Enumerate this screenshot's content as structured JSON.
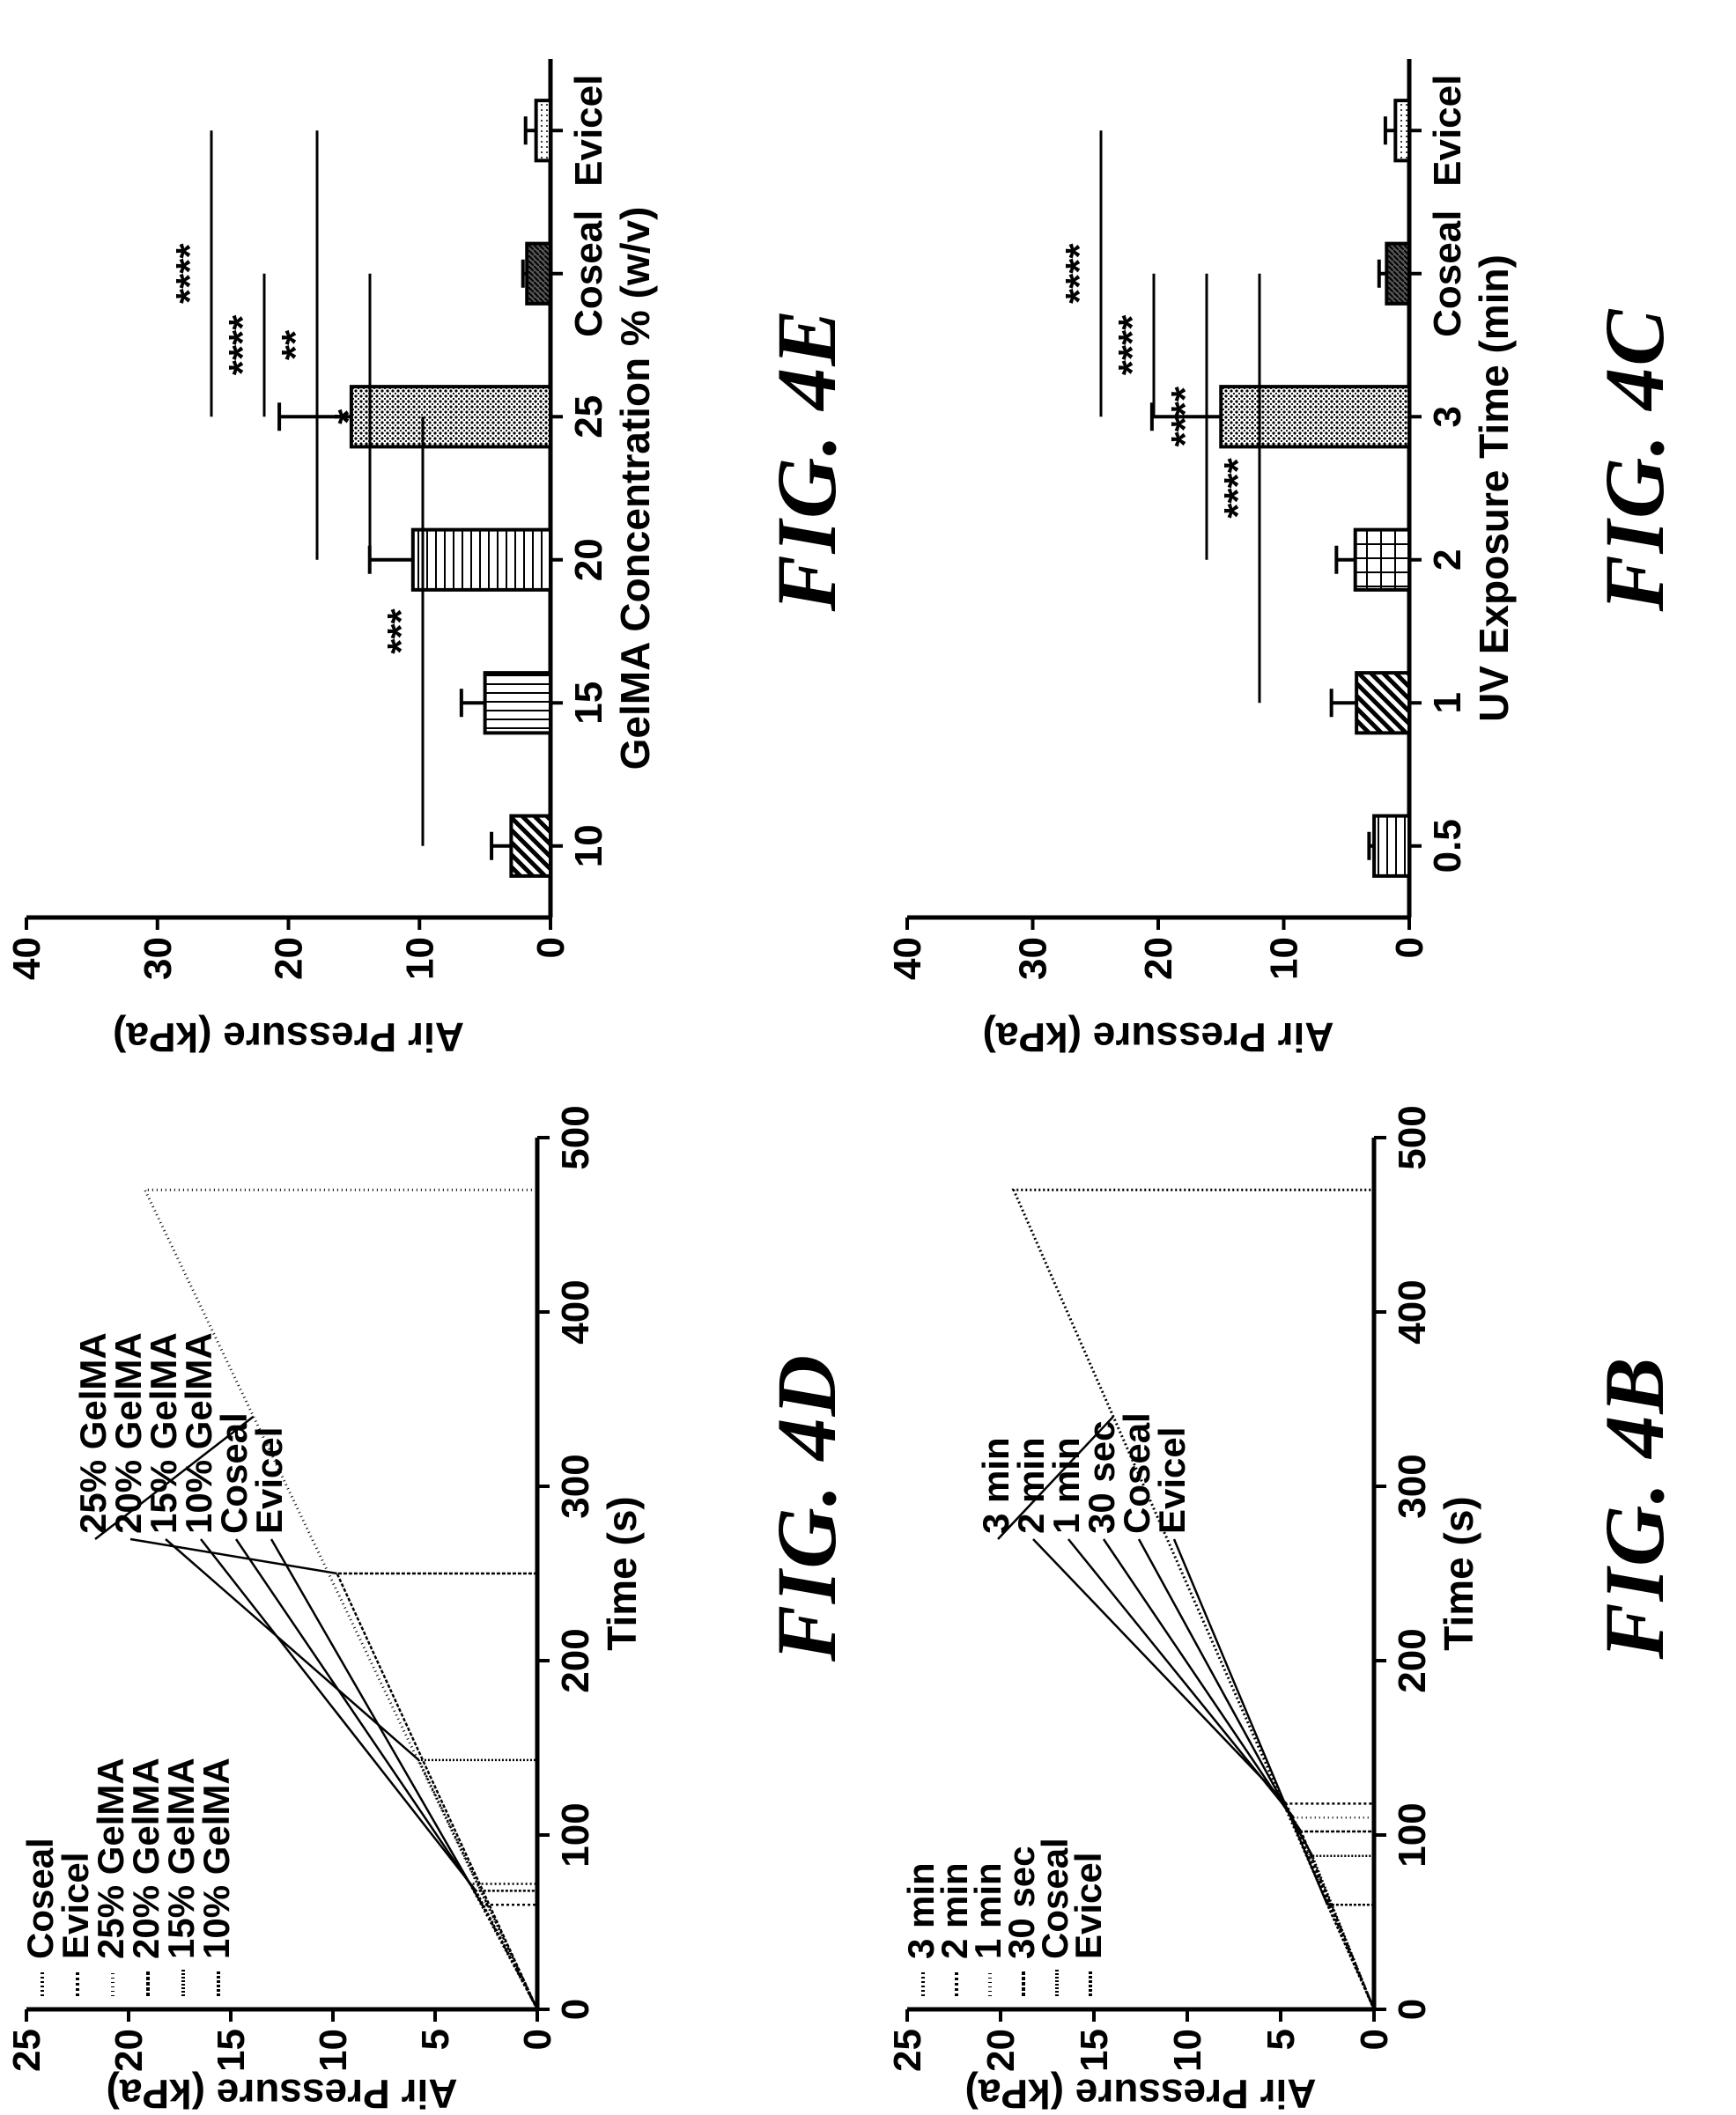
{
  "figures": [
    {
      "id": "4B",
      "fig_label": "FIG.  4B",
      "chart_data": {
        "type": "line",
        "title": "",
        "xlabel": "Time (s)",
        "ylabel": "Air Pressure (kPa)",
        "xlim": [
          0,
          500
        ],
        "ylim": [
          0,
          25
        ],
        "x_ticks": [
          "0",
          "100",
          "200",
          "300",
          "400",
          "500"
        ],
        "y_ticks": [
          "0",
          "5",
          "10",
          "15",
          "20",
          "25"
        ],
        "legend_position": "top-left",
        "series": [
          {
            "name": "3 min",
            "x": [
              0,
              470,
              470
            ],
            "y": [
              0,
              19.3,
              0
            ]
          },
          {
            "name": "2 min",
            "x": [
              0,
              118,
              118
            ],
            "y": [
              0,
              4.7,
              0
            ]
          },
          {
            "name": "1 min",
            "x": [
              0,
              110,
              110
            ],
            "y": [
              0,
              4.3,
              0
            ]
          },
          {
            "name": "30 sec",
            "x": [
              0,
              102,
              102
            ],
            "y": [
              0,
              3.9,
              0
            ]
          },
          {
            "name": "Coseal",
            "x": [
              0,
              88,
              88
            ],
            "y": [
              0,
              3.3,
              0
            ]
          },
          {
            "name": "Evicel",
            "x": [
              0,
              60,
              60
            ],
            "y": [
              0,
              2.5,
              0
            ]
          }
        ],
        "annotations": [
          "3 min",
          "2 min",
          "1 min",
          "30 sec",
          "Coseal",
          "Evicel"
        ]
      }
    },
    {
      "id": "4C",
      "fig_label": "FIG.  4C",
      "chart_data": {
        "type": "bar",
        "title": "",
        "xlabel": "UV Exposure Time (min)",
        "ylabel": "Air Pressure (kPa)",
        "categories": [
          "0.5",
          "1",
          "2",
          "3",
          "Coseal",
          "Evicel"
        ],
        "values": [
          2.8,
          4.2,
          4.3,
          15.0,
          1.8,
          1.1
        ],
        "errors": [
          0.4,
          2.0,
          1.5,
          5.5,
          0.6,
          0.8
        ],
        "ylim": [
          0,
          40
        ],
        "y_ticks": [
          "0",
          "10",
          "20",
          "30",
          "40"
        ],
        "significance": [
          {
            "from": "1",
            "to": "Coseal",
            "label": "****"
          },
          {
            "from": "2",
            "to": "Coseal",
            "label": "****"
          },
          {
            "from": "3",
            "to": "Coseal",
            "label": "****"
          },
          {
            "from": "3",
            "to": "Evicel",
            "label": "****"
          }
        ]
      }
    },
    {
      "id": "4D",
      "fig_label": "FIG.  4D",
      "chart_data": {
        "type": "line",
        "title": "",
        "xlabel": "Time (s)",
        "ylabel": "Air Pressure (kPa)",
        "xlim": [
          0,
          500
        ],
        "ylim": [
          0,
          25
        ],
        "x_ticks": [
          "0",
          "100",
          "200",
          "300",
          "400",
          "500"
        ],
        "y_ticks": [
          "0",
          "5",
          "10",
          "15",
          "20",
          "25"
        ],
        "legend_position": "top-left",
        "series": [
          {
            "name": "Coseal",
            "x": [
              0,
              72,
              72
            ],
            "y": [
              0,
              3.3,
              0
            ]
          },
          {
            "name": "Evicel",
            "x": [
              0,
              60,
              60
            ],
            "y": [
              0,
              2.7,
              0
            ]
          },
          {
            "name": "25% GelMA",
            "x": [
              0,
              470,
              470
            ],
            "y": [
              0,
              19.2,
              0
            ]
          },
          {
            "name": "20% GelMA",
            "x": [
              0,
              250,
              250
            ],
            "y": [
              0,
              9.8,
              0
            ]
          },
          {
            "name": "15% GelMA",
            "x": [
              0,
              143,
              143
            ],
            "y": [
              0,
              5.8,
              0
            ]
          },
          {
            "name": "10% GelMA",
            "x": [
              0,
              68,
              68
            ],
            "y": [
              0,
              3.0,
              0
            ]
          }
        ],
        "annotations": [
          "25% GelMA",
          "20% GelMA",
          "15% GelMA",
          "10% GelMA",
          "Coseal",
          "Evicel"
        ]
      }
    },
    {
      "id": "4E",
      "fig_label": "FIG.  4E",
      "chart_data": {
        "type": "bar",
        "title": "",
        "xlabel": "GelMA Concentration % (w/v)",
        "ylabel": "Air Pressure (kPa)",
        "categories": [
          "10",
          "15",
          "20",
          "25",
          "Coseal",
          "Evicel"
        ],
        "values": [
          3.0,
          5.0,
          10.5,
          15.2,
          1.8,
          1.1
        ],
        "errors": [
          1.5,
          1.8,
          3.3,
          5.5,
          0.3,
          0.8
        ],
        "ylim": [
          0,
          40
        ],
        "y_ticks": [
          "0",
          "10",
          "20",
          "30",
          "40"
        ],
        "significance": [
          {
            "from": "10",
            "to": "25",
            "label": "***"
          },
          {
            "from": "20",
            "to": "Coseal",
            "label": "*"
          },
          {
            "from": "20",
            "to": "Evicel",
            "label": "**"
          },
          {
            "from": "25",
            "to": "Coseal",
            "label": "****"
          },
          {
            "from": "25",
            "to": "Evicel",
            "label": "****"
          }
        ]
      }
    }
  ]
}
